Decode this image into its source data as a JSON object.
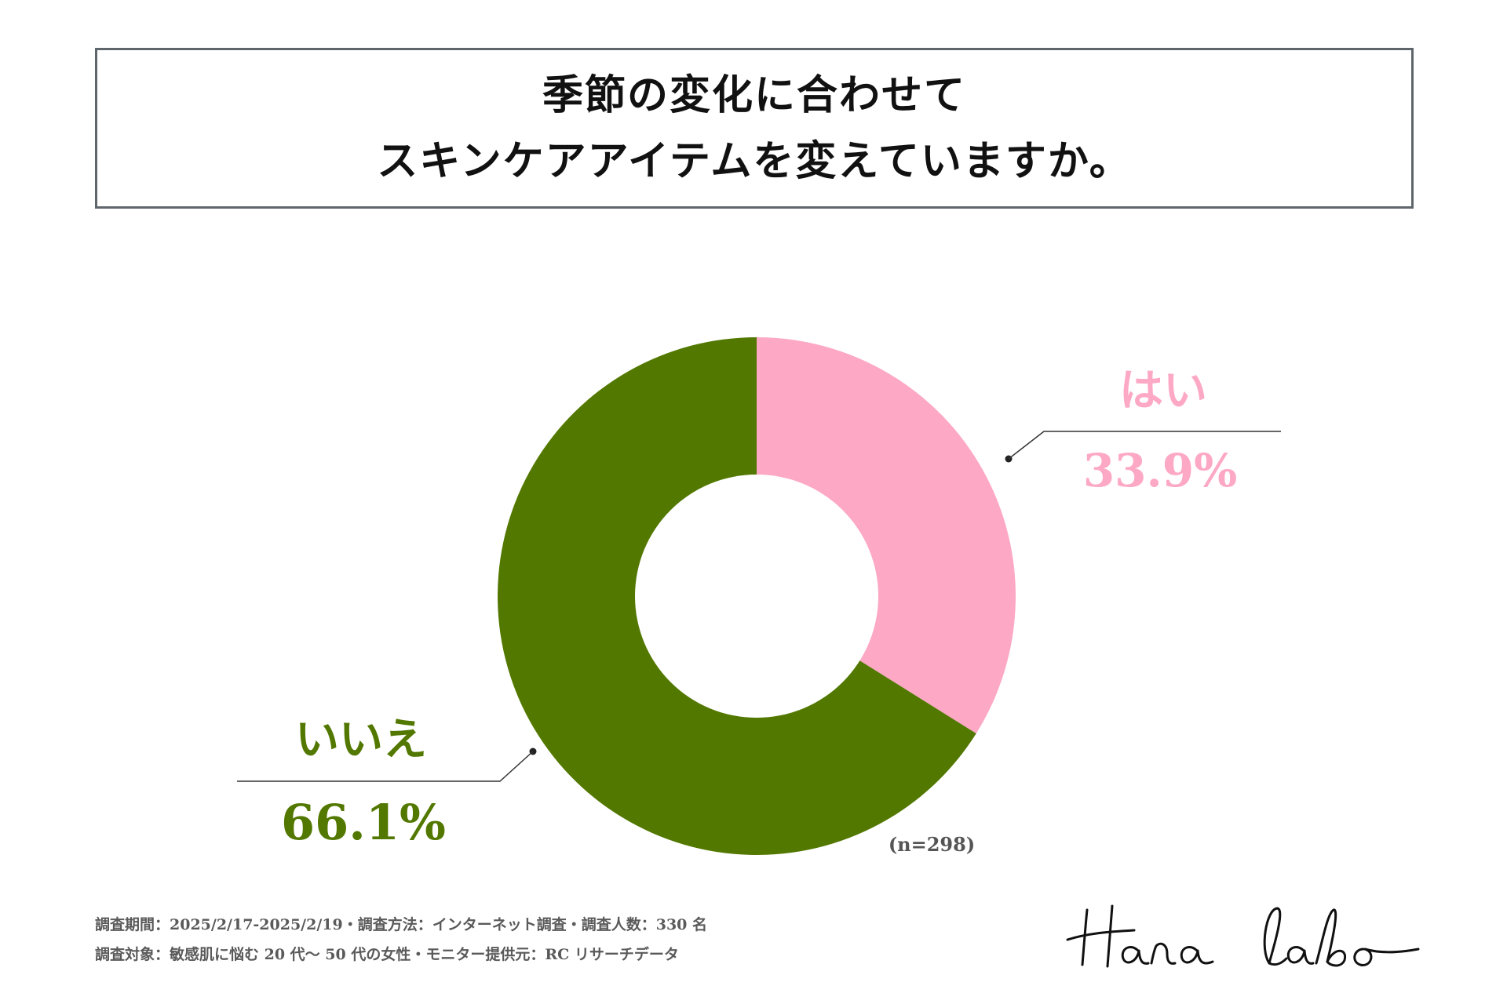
{
  "title": {
    "line1": "季節の変化に合わせて",
    "line2": "スキンケアアイテムを変えていますか。"
  },
  "chart_data": {
    "type": "pie",
    "donut": true,
    "slices": [
      {
        "label": "はい",
        "value": 33.9,
        "value_label": "33.9%",
        "color": "#fda8c4"
      },
      {
        "label": "いいえ",
        "value": 66.1,
        "value_label": "66.1%",
        "color": "#527800"
      }
    ],
    "sample_label": "(n=298)"
  },
  "footer": {
    "line1": "調査期間：2025/2/17-2025/2/19・調査方法：インターネット調査・調査人数：330 名",
    "line2": "調査対象：敏感肌に悩む 20 代〜 50 代の女性・モニター提供元：RC リサーチデータ"
  },
  "logo": {
    "text": "Hana labo",
    "icon": "hana-labo-signature-logo"
  }
}
